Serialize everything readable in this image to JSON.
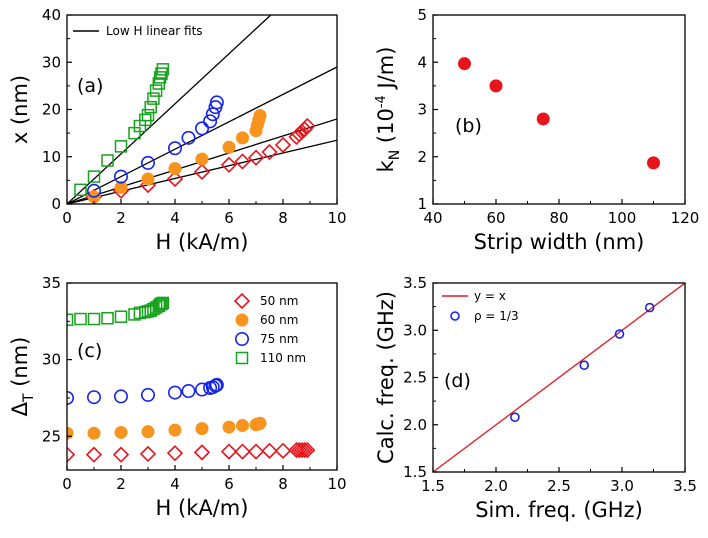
{
  "chart_data": [
    {
      "type": "scatter",
      "panel_label": "(a)",
      "xlabel": "H (kA/m)",
      "ylabel": "x (nm)",
      "xlim": [
        0,
        10
      ],
      "ylim": [
        0,
        40
      ],
      "xticks": [
        "0",
        "2",
        "4",
        "6",
        "8",
        "10"
      ],
      "yticks": [
        "0",
        "10",
        "20",
        "30",
        "40"
      ],
      "legend": [
        "Low H linear fits"
      ],
      "fit_lines": [
        {
          "name": "50 nm fit",
          "slope": 1.35,
          "color": "#000000"
        },
        {
          "name": "60 nm fit",
          "slope": 1.8,
          "color": "#000000"
        },
        {
          "name": "75 nm fit",
          "slope": 2.9,
          "color": "#000000"
        },
        {
          "name": "110 nm fit",
          "slope": 5.3,
          "color": "#000000"
        }
      ],
      "series": [
        {
          "name": "50 nm",
          "marker": "diamond-open",
          "color": "#e8141c",
          "x": [
            1.0,
            2.0,
            3.0,
            4.0,
            5.0,
            6.0,
            6.5,
            7.0,
            7.5,
            8.0,
            8.5,
            8.6,
            8.7,
            8.8,
            8.9
          ],
          "y": [
            1.5,
            2.8,
            4.0,
            5.3,
            6.8,
            8.3,
            9.0,
            9.8,
            11.0,
            12.5,
            14.2,
            14.8,
            15.3,
            15.8,
            16.5
          ]
        },
        {
          "name": "60 nm",
          "marker": "circle-filled",
          "color": "#f7941d",
          "x": [
            1.0,
            2.0,
            3.0,
            4.0,
            5.0,
            6.0,
            6.5,
            7.0,
            7.05,
            7.1,
            7.15
          ],
          "y": [
            1.5,
            3.5,
            5.3,
            7.5,
            9.5,
            12.0,
            14.0,
            15.5,
            16.7,
            17.7,
            18.7
          ]
        },
        {
          "name": "75 nm",
          "marker": "circle-open",
          "color": "#1424e8",
          "x": [
            1.0,
            2.0,
            3.0,
            4.0,
            4.5,
            5.0,
            5.3,
            5.4,
            5.5,
            5.55
          ],
          "y": [
            2.8,
            5.8,
            8.7,
            11.8,
            14.0,
            16.0,
            17.5,
            19.0,
            20.5,
            21.5
          ]
        },
        {
          "name": "110 nm",
          "marker": "square-open",
          "color": "#16a21e",
          "x": [
            0.5,
            1.0,
            1.5,
            2.0,
            2.5,
            2.7,
            2.9,
            3.0,
            3.1,
            3.2,
            3.3,
            3.4,
            3.45,
            3.5,
            3.55
          ],
          "y": [
            3.0,
            5.8,
            9.2,
            12.2,
            15.0,
            16.5,
            17.8,
            18.8,
            20.5,
            22.3,
            24.0,
            25.5,
            26.8,
            27.6,
            28.5
          ]
        }
      ]
    },
    {
      "type": "scatter",
      "panel_label": "(b)",
      "xlabel": "Strip width (nm)",
      "ylabel": "k_N (10^-4 J/m)",
      "ylabel_parts": {
        "base": "k",
        "sub": "N",
        "pre": " (10",
        "sup": "-4",
        "post": " J/m)"
      },
      "xlim": [
        40,
        120
      ],
      "ylim": [
        1,
        5
      ],
      "xticks": [
        "40",
        "60",
        "80",
        "100",
        "120"
      ],
      "yticks": [
        "1",
        "2",
        "3",
        "4",
        "5"
      ],
      "series": [
        {
          "name": "k_N",
          "marker": "circle-filled",
          "color": "#e8141c",
          "x": [
            50,
            60,
            75,
            110
          ],
          "y": [
            3.97,
            3.5,
            2.8,
            1.87
          ]
        }
      ]
    },
    {
      "type": "scatter",
      "panel_label": "(c)",
      "xlabel": "H (kA/m)",
      "ylabel": "Δ_T (nm)",
      "ylabel_parts": {
        "base": "Δ",
        "sub": "T",
        "post": " (nm)"
      },
      "xlim": [
        0,
        10
      ],
      "ylim": [
        22.8,
        35
      ],
      "xticks": [
        "0",
        "2",
        "4",
        "6",
        "8",
        "10"
      ],
      "yticks": [
        "25",
        "30",
        "35"
      ],
      "series": [
        {
          "name": "50 nm",
          "marker": "diamond-open",
          "color": "#e8141c",
          "x": [
            0,
            1,
            2,
            3,
            4,
            5,
            6,
            6.5,
            7,
            7.5,
            8,
            8.5,
            8.6,
            8.7,
            8.8,
            8.9
          ],
          "y": [
            23.8,
            23.8,
            23.8,
            23.85,
            23.9,
            23.95,
            24.0,
            24.0,
            24.0,
            24.05,
            24.05,
            24.1,
            24.1,
            24.1,
            24.1,
            24.1
          ]
        },
        {
          "name": "60 nm",
          "marker": "circle-filled",
          "color": "#f7941d",
          "x": [
            0,
            1,
            2,
            3,
            4,
            5,
            6,
            6.5,
            7,
            7.05,
            7.1,
            7.15
          ],
          "y": [
            25.2,
            25.2,
            25.25,
            25.3,
            25.4,
            25.5,
            25.6,
            25.7,
            25.75,
            25.8,
            25.8,
            25.85
          ]
        },
        {
          "name": "75 nm",
          "marker": "circle-open",
          "color": "#1424e8",
          "x": [
            0,
            1,
            2,
            3,
            4,
            4.5,
            5,
            5.3,
            5.4,
            5.5,
            5.55
          ],
          "y": [
            27.5,
            27.55,
            27.6,
            27.7,
            27.85,
            27.95,
            28.05,
            28.15,
            28.2,
            28.3,
            28.35
          ]
        },
        {
          "name": "110 nm",
          "marker": "square-open",
          "color": "#16a21e",
          "x": [
            0,
            0.5,
            1,
            1.5,
            2,
            2.5,
            2.7,
            2.9,
            3.0,
            3.1,
            3.2,
            3.3,
            3.4,
            3.45,
            3.5,
            3.55
          ],
          "y": [
            32.6,
            32.65,
            32.65,
            32.7,
            32.8,
            32.95,
            33.05,
            33.1,
            33.15,
            33.2,
            33.3,
            33.4,
            33.5,
            33.6,
            33.65,
            33.7
          ]
        }
      ]
    },
    {
      "type": "scatter",
      "panel_label": "(d)",
      "xlabel": "Sim. freq. (GHz)",
      "ylabel": "Calc. freq. (GHz)",
      "xlim": [
        1.5,
        3.5
      ],
      "ylim": [
        1.5,
        3.5
      ],
      "xticks": [
        "1.5",
        "2.0",
        "2.5",
        "3.0",
        "3.5"
      ],
      "yticks": [
        "1.5",
        "2.0",
        "2.5",
        "3.0",
        "3.5"
      ],
      "legend": [
        "y = x",
        "ρ = 1/3"
      ],
      "fit_lines": [
        {
          "name": "y = x",
          "slope": 1,
          "color": "#e8141c"
        }
      ],
      "series": [
        {
          "name": "ρ = 1/3",
          "marker": "circle-open",
          "color": "#1424e8",
          "x": [
            2.15,
            2.7,
            2.98,
            3.22
          ],
          "y": [
            2.08,
            2.63,
            2.96,
            3.24
          ]
        }
      ]
    }
  ]
}
